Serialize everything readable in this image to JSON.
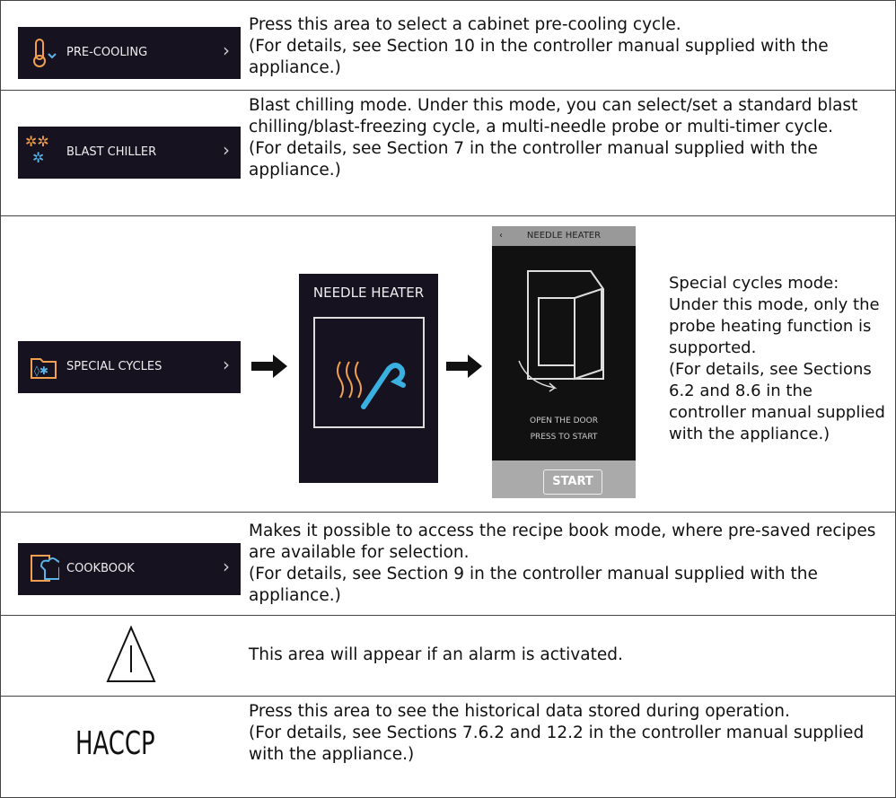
{
  "rows": [
    {
      "button": "PRE-COOLING",
      "lines": [
        "Press this area to select a cabinet pre-cooling cycle.",
        "(For details, see Section 10 in the controller manual supplied with the",
        "appliance.)"
      ]
    },
    {
      "button": "BLAST CHILLER",
      "lines": [
        "Blast chilling mode. Under this mode, you can select/set a standard blast",
        "chilling/blast-freezing cycle, a multi-needle probe or multi-timer cycle.",
        "(For details, see Section 7 in the controller manual supplied with the",
        "appliance.)"
      ]
    },
    {
      "button": "SPECIAL CYCLES",
      "panel_title": "NEEDLE HEATER",
      "screen": {
        "title": "NEEDLE HEATER",
        "line1": "OPEN THE DOOR",
        "line2": "PRESS TO START",
        "start": "START"
      },
      "lines": [
        "Special cycles mode:",
        "Under this mode, only the",
        "probe heating function is",
        "supported.",
        "(For details, see Sections",
        "6.2 and 8.6 in the",
        "controller manual supplied",
        "with the appliance.)"
      ]
    },
    {
      "button": "COOKBOOK",
      "lines": [
        "Makes it possible to access the recipe book mode, where pre-saved recipes",
        "are available for selection.",
        "(For details, see Section 9 in the controller manual supplied with the",
        "appliance.)"
      ]
    },
    {
      "lines": [
        "This area will appear if an alarm is activated."
      ]
    },
    {
      "icon_label": "HACCP",
      "lines": [
        "Press this area to see the historical data stored during operation.",
        "(For details, see Sections 7.6.2 and 12.2 in the controller manual supplied",
        "with the appliance.)"
      ]
    }
  ]
}
